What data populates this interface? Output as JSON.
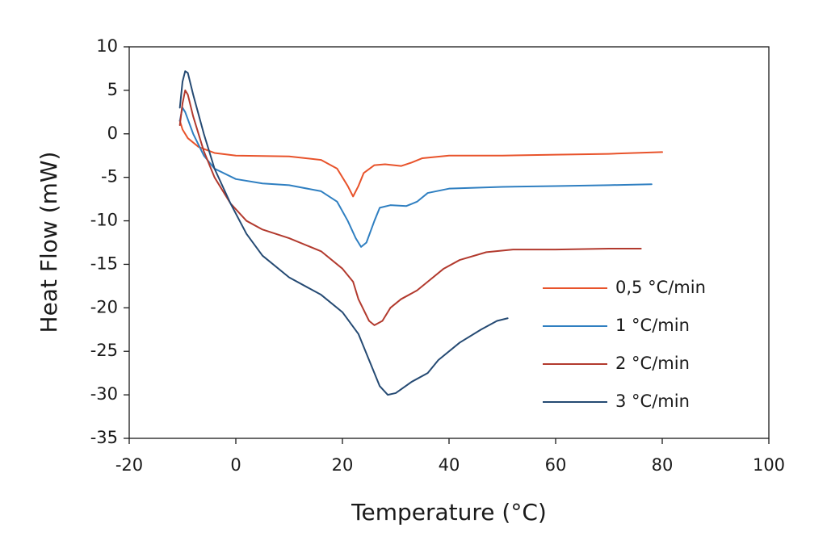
{
  "chart_data": {
    "type": "line",
    "xlabel": "Temperature (°C)",
    "ylabel": "Heat Flow (mW)",
    "xlim": [
      -20,
      100
    ],
    "xticks": [
      -20,
      0,
      20,
      40,
      60,
      80,
      100
    ],
    "ylim": [
      -35,
      10
    ],
    "yticks": [
      -35,
      -30,
      -25,
      -20,
      -15,
      -10,
      -5,
      0,
      5,
      10
    ],
    "grid": false,
    "legend": "right",
    "series": [
      {
        "name": "0,5 °C/min",
        "color": "#e8532b",
        "x": [
          -10.5,
          -10,
          -9,
          -7,
          -4,
          0,
          10,
          16,
          19,
          21,
          22,
          23,
          24,
          26,
          28,
          31,
          33,
          35,
          40,
          50,
          60,
          70,
          80
        ],
        "y": [
          1.5,
          0.5,
          -0.5,
          -1.5,
          -2.2,
          -2.5,
          -2.6,
          -3.0,
          -4,
          -6,
          -7.2,
          -6,
          -4.5,
          -3.6,
          -3.5,
          -3.7,
          -3.3,
          -2.8,
          -2.5,
          -2.5,
          -2.4,
          -2.3,
          -2.1
        ]
      },
      {
        "name": "1 °C/min",
        "color": "#2f7fc1",
        "x": [
          -10.5,
          -10,
          -9.5,
          -8,
          -6,
          -4,
          0,
          5,
          10,
          16,
          19,
          21,
          22.5,
          23.5,
          24.5,
          26,
          27,
          29,
          32,
          34,
          36,
          40,
          50,
          60,
          70,
          78
        ],
        "y": [
          1.5,
          3,
          2.5,
          0,
          -2.5,
          -4,
          -5.2,
          -5.7,
          -5.9,
          -6.6,
          -7.8,
          -10,
          -12,
          -13,
          -12.5,
          -10,
          -8.5,
          -8.2,
          -8.3,
          -7.8,
          -6.8,
          -6.3,
          -6.1,
          -6.0,
          -5.9,
          -5.8
        ]
      },
      {
        "name": "2 °C/min",
        "color": "#b23a2e",
        "x": [
          -10.5,
          -10,
          -9.5,
          -9,
          -8,
          -6,
          -4,
          -1,
          2,
          5,
          10,
          16,
          20,
          22,
          23,
          25,
          26,
          27.5,
          29,
          31,
          34,
          36,
          39,
          42,
          47,
          52,
          60,
          70,
          76
        ],
        "y": [
          1,
          3.5,
          5,
          4.5,
          2,
          -2,
          -5,
          -8,
          -10,
          -11,
          -12,
          -13.5,
          -15.5,
          -17,
          -19,
          -21.5,
          -22,
          -21.5,
          -20,
          -19,
          -18,
          -17,
          -15.5,
          -14.5,
          -13.6,
          -13.3,
          -13.3,
          -13.2,
          -13.2
        ]
      },
      {
        "name": "3 °C/min",
        "color": "#254a73",
        "x": [
          -10.5,
          -10,
          -9.5,
          -9,
          -8,
          -6,
          -4,
          -1,
          2,
          5,
          10,
          16,
          20,
          23,
          25,
          27,
          28.5,
          30,
          33,
          36,
          38,
          42,
          46,
          49,
          51
        ],
        "y": [
          3,
          6,
          7.2,
          7,
          4.5,
          0,
          -4,
          -8,
          -11.5,
          -14,
          -16.5,
          -18.5,
          -20.5,
          -23,
          -26,
          -29,
          -30,
          -29.8,
          -28.5,
          -27.5,
          -26,
          -24,
          -22.5,
          -21.5,
          -21.2
        ]
      }
    ]
  }
}
